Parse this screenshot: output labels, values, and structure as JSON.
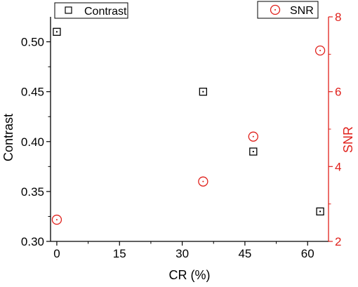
{
  "chart_data": {
    "type": "scatter",
    "xlabel": "CR (%)",
    "x_ticks": [
      "0",
      "15",
      "30",
      "45",
      "60"
    ],
    "xlim": [
      -1.5,
      65
    ],
    "left_axis": {
      "label": "Contrast",
      "ylim": [
        0.3,
        0.525
      ],
      "ticks": [
        "0.30",
        "0.35",
        "0.40",
        "0.45",
        "0.50"
      ]
    },
    "right_axis": {
      "label": "SNR",
      "ylim": [
        2,
        8
      ],
      "ticks": [
        "2",
        "4",
        "6",
        "8"
      ]
    },
    "series": [
      {
        "name": "Contrast",
        "axis": "left",
        "marker": "square",
        "color": "#000000",
        "points": [
          {
            "x": 0,
            "y": 0.51
          },
          {
            "x": 35,
            "y": 0.45
          },
          {
            "x": 47,
            "y": 0.39
          },
          {
            "x": 63,
            "y": 0.33
          }
        ]
      },
      {
        "name": "SNR",
        "axis": "right",
        "marker": "circle",
        "color": "#e0201b",
        "points": [
          {
            "x": 0,
            "y": 2.58
          },
          {
            "x": 35,
            "y": 3.6
          },
          {
            "x": 47,
            "y": 4.8
          },
          {
            "x": 63,
            "y": 7.1
          }
        ]
      }
    ],
    "legend": [
      "top-left",
      "top-right"
    ],
    "grid": false
  }
}
